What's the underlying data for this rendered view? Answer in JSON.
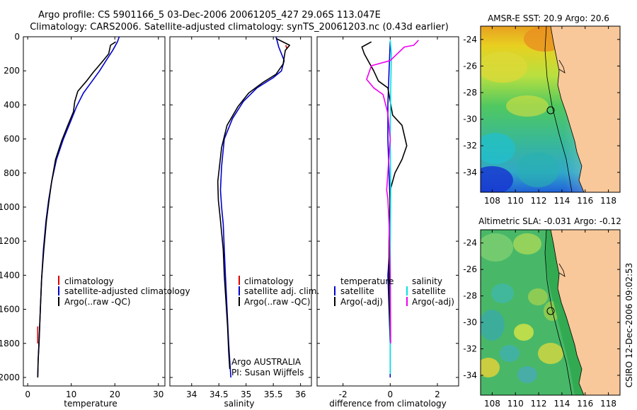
{
  "title": {
    "line1": "Argo profile: CS 5901166_5 03-Dec-2006 20061205_427 29.06S 113.047E",
    "line2": "Climatology: CARS2006. Satellite-adjusted climatology: synTS_20061203.nc (0.43d earlier)"
  },
  "chart_data": [
    {
      "type": "line",
      "id": "temperature",
      "xlabel": "temperature",
      "ylabel": "",
      "xlim": [
        -1,
        31.5
      ],
      "ylim": [
        2050,
        0
      ],
      "xticks": [
        "0",
        "10",
        "20",
        "30"
      ],
      "yticks": [
        "0",
        "200",
        "400",
        "600",
        "800",
        "1000",
        "1200",
        "1400",
        "1600",
        "1800",
        "2000"
      ],
      "legend": [
        "climatology",
        "satellite-adjusted climatology",
        "Argo(..raw -QC)"
      ],
      "series": [
        {
          "name": "climatology",
          "color": "#dd0000",
          "x": [
            2.3,
            2.3
          ],
          "y": [
            1700,
            1800
          ]
        },
        {
          "name": "satellite-adjusted climatology",
          "color": "#0000cc",
          "x": [
            21.0,
            20.6,
            19.5,
            18.0,
            16.5,
            14.8,
            12.8,
            11.2,
            9.8,
            8.2,
            6.6,
            5.5,
            4.8,
            4.2,
            3.6,
            3.2,
            2.9,
            2.6,
            2.4,
            2.3
          ],
          "y": [
            0,
            30,
            80,
            140,
            200,
            260,
            330,
            410,
            500,
            600,
            720,
            850,
            960,
            1080,
            1250,
            1420,
            1600,
            1800,
            1900,
            2000
          ]
        },
        {
          "name": "Argo(..raw -QC)",
          "color": "#000000",
          "x": [
            20.2,
            19.0,
            18.6,
            17.0,
            15.0,
            13.5,
            11.5,
            10.8,
            10.5,
            9.2,
            7.8,
            6.4,
            5.5,
            4.9,
            4.3,
            3.7,
            3.2,
            2.9,
            2.6,
            2.4,
            2.3
          ],
          "y": [
            30,
            50,
            100,
            150,
            210,
            260,
            320,
            380,
            440,
            520,
            610,
            720,
            850,
            960,
            1080,
            1250,
            1420,
            1600,
            1780,
            1900,
            2000
          ]
        }
      ]
    },
    {
      "type": "line",
      "id": "salinity",
      "xlabel": "salinity",
      "ylabel": "",
      "xlim": [
        33.6,
        36.2
      ],
      "ylim": [
        2050,
        0
      ],
      "xticks": [
        "34",
        "34.5",
        "35",
        "35.5",
        "36"
      ],
      "legend": [
        "climatology",
        "satellite adj. clim.",
        "Argo(..raw -QC)"
      ],
      "annotation": [
        "Argo AUSTRALIA",
        "PI: Susan Wijffels"
      ],
      "series": [
        {
          "name": "climatology",
          "color": "#dd0000",
          "x": [
            35.73,
            35.75
          ],
          "y": [
            50,
            70
          ]
        },
        {
          "name": "satellite adj. clim.",
          "color": "#0000cc",
          "x": [
            35.55,
            35.6,
            35.7,
            35.65,
            35.5,
            35.2,
            34.95,
            34.75,
            34.6,
            34.55,
            34.53,
            34.55,
            34.58,
            34.6,
            34.62,
            34.65,
            34.68,
            34.7,
            34.72
          ],
          "y": [
            0,
            60,
            140,
            200,
            240,
            300,
            380,
            480,
            600,
            760,
            900,
            1000,
            1100,
            1250,
            1400,
            1600,
            1800,
            1900,
            2000
          ]
        },
        {
          "name": "Argo(..raw -QC)",
          "color": "#000000",
          "x": [
            35.55,
            35.8,
            35.72,
            35.68,
            35.55,
            35.3,
            35.05,
            34.85,
            34.65,
            34.55,
            34.48,
            34.49,
            34.52,
            34.55,
            34.58,
            34.6,
            34.63,
            34.66,
            34.68,
            34.7
          ],
          "y": [
            10,
            50,
            80,
            160,
            220,
            270,
            330,
            410,
            520,
            650,
            850,
            960,
            1050,
            1150,
            1250,
            1400,
            1550,
            1700,
            1850,
            1950
          ]
        }
      ]
    },
    {
      "type": "line",
      "id": "difference",
      "xlabel": "difference from climatology",
      "ylabel": "",
      "xlim": [
        -3.1,
        2.9
      ],
      "ylim": [
        2050,
        0
      ],
      "xticks": [
        "-2",
        "0",
        "2"
      ],
      "legend_left": {
        "title": "temperature",
        "items": [
          "satellite",
          "Argo(-adj)"
        ]
      },
      "legend_right": {
        "title": "salinity",
        "items": [
          "satellite",
          "Argo(-adj)"
        ]
      },
      "series": [
        {
          "name": "temperature satellite",
          "color": "#0000cc",
          "x": [
            0.0,
            -0.05,
            -0.1,
            -0.1,
            -0.05,
            0.0,
            0.0,
            -0.05,
            -0.1,
            -0.05,
            0.0,
            0.0,
            0.0
          ],
          "y": [
            30,
            200,
            400,
            600,
            800,
            1000,
            1200,
            1300,
            1400,
            1600,
            1800,
            1900,
            2000
          ]
        },
        {
          "name": "temperature Argo(-adj)",
          "color": "#000000",
          "x": [
            -0.8,
            -1.2,
            -1.1,
            -0.9,
            -0.7,
            -0.5,
            -0.1,
            0.1,
            0.5,
            0.7,
            0.5,
            0.2,
            0.0,
            -0.05,
            -0.05,
            0.0
          ],
          "y": [
            30,
            60,
            100,
            150,
            200,
            260,
            300,
            460,
            520,
            640,
            720,
            800,
            900,
            1200,
            1500,
            1800
          ]
        },
        {
          "name": "salinity satellite",
          "color": "#00e0e0",
          "x": [
            0.0,
            0.05,
            0.02,
            0.0,
            0.02,
            0.0,
            0.01,
            0.0,
            0.0
          ],
          "y": [
            20,
            100,
            300,
            600,
            900,
            1200,
            1500,
            1800,
            1980
          ]
        },
        {
          "name": "salinity Argo(-adj)",
          "color": "#ee00ee",
          "x": [
            1.2,
            1.0,
            0.6,
            0.3,
            0.0,
            -0.8,
            -1.0,
            -0.7,
            -0.3,
            -0.1,
            0.0,
            -0.1,
            -0.15,
            -0.1,
            -0.05,
            0.0,
            0.02
          ],
          "y": [
            20,
            50,
            60,
            100,
            140,
            170,
            250,
            300,
            340,
            450,
            600,
            800,
            900,
            950,
            1100,
            1400,
            1800
          ]
        }
      ]
    },
    {
      "type": "heatmap",
      "id": "sst_map",
      "title": "AMSR-E SST: 20.9 Argo: 20.6",
      "xticks": [
        "108",
        "110",
        "112",
        "114",
        "116",
        "118"
      ],
      "yticks": [
        "-24",
        "-26",
        "-28",
        "-30",
        "-32",
        "-34"
      ],
      "xlim": [
        107,
        119
      ],
      "ylim": [
        -35.5,
        -23
      ],
      "profile_location": {
        "lon": 113.047,
        "lat": -29.06
      }
    },
    {
      "type": "heatmap",
      "id": "sla_map",
      "title": "Altimetric SLA: -0.031 Argo: -0.12",
      "xticks": [
        "108",
        "110",
        "112",
        "114",
        "116",
        "118"
      ],
      "yticks": [
        "-24",
        "-26",
        "-28",
        "-30",
        "-32",
        "-34"
      ],
      "xlim": [
        107,
        119
      ],
      "ylim": [
        -35.5,
        -23
      ],
      "profile_location": {
        "lon": 113.047,
        "lat": -29.06
      }
    }
  ],
  "footer": {
    "credit": "CSIRO 12-Dec-2006 09:02:53"
  },
  "colors": {
    "land": "#f8c89a",
    "axis": "#000000"
  }
}
